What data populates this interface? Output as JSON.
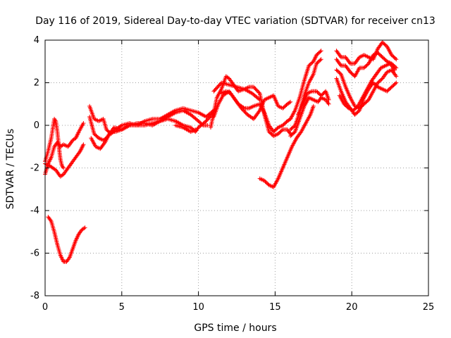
{
  "chart_data": {
    "type": "scatter",
    "title": "Day 116 of 2019, Sidereal Day-to-day VTEC variation (SDTVAR) for receiver cn13",
    "xlabel": "GPS time / hours",
    "ylabel": "SDTVAR / TECUs",
    "xlim": [
      0,
      25
    ],
    "ylim": [
      -8,
      4
    ],
    "xticks": [
      "0",
      "5",
      "10",
      "15",
      "20",
      "25"
    ],
    "yticks": [
      "-8",
      "-6",
      "-4",
      "-2",
      "0",
      "2",
      "4"
    ],
    "grid": true,
    "marker": "plus",
    "color": "#ff0000",
    "series": [
      {
        "values": [
          [
            0.0,
            -2.3
          ],
          [
            0.2,
            -1.8
          ],
          [
            0.4,
            -1.5
          ],
          [
            0.6,
            -1.0
          ],
          [
            0.8,
            -0.8
          ],
          [
            1.0,
            -1.0
          ],
          [
            1.2,
            -0.9
          ],
          [
            1.5,
            -1.0
          ],
          [
            1.8,
            -0.7
          ],
          [
            2.0,
            -0.6
          ],
          [
            2.2,
            -0.3
          ],
          [
            2.5,
            0.1
          ]
        ]
      },
      {
        "values": [
          [
            0.0,
            -1.7
          ],
          [
            0.2,
            -1.2
          ],
          [
            0.4,
            -0.6
          ],
          [
            0.6,
            0.3
          ],
          [
            0.7,
            0.2
          ],
          [
            0.8,
            -0.3
          ],
          [
            0.9,
            -1.0
          ],
          [
            1.0,
            -1.6
          ],
          [
            1.1,
            -1.9
          ],
          [
            1.2,
            -2.0
          ]
        ]
      },
      {
        "values": [
          [
            0.0,
            -1.8
          ],
          [
            0.3,
            -1.9
          ],
          [
            0.5,
            -2.0
          ],
          [
            0.7,
            -2.1
          ],
          [
            0.9,
            -2.3
          ],
          [
            1.0,
            -2.4
          ],
          [
            1.2,
            -2.3
          ],
          [
            1.5,
            -2.0
          ],
          [
            1.8,
            -1.7
          ],
          [
            2.0,
            -1.5
          ],
          [
            2.3,
            -1.2
          ],
          [
            2.5,
            -0.9
          ]
        ]
      },
      {
        "values": [
          [
            0.2,
            -4.3
          ],
          [
            0.4,
            -4.5
          ],
          [
            0.6,
            -5.0
          ],
          [
            0.8,
            -5.6
          ],
          [
            1.0,
            -6.1
          ],
          [
            1.2,
            -6.4
          ],
          [
            1.4,
            -6.4
          ],
          [
            1.6,
            -6.2
          ],
          [
            1.8,
            -5.8
          ],
          [
            2.0,
            -5.4
          ],
          [
            2.2,
            -5.1
          ],
          [
            2.4,
            -4.9
          ],
          [
            2.6,
            -4.8
          ]
        ]
      },
      {
        "values": [
          [
            2.9,
            0.9
          ],
          [
            3.2,
            0.3
          ],
          [
            3.5,
            0.2
          ],
          [
            3.8,
            0.3
          ],
          [
            4.0,
            -0.2
          ],
          [
            4.3,
            -0.4
          ],
          [
            4.6,
            -0.2
          ],
          [
            5.0,
            0.0
          ],
          [
            5.5,
            0.1
          ],
          [
            6.0,
            0.0
          ],
          [
            6.5,
            0.2
          ],
          [
            7.0,
            0.3
          ],
          [
            7.5,
            0.3
          ],
          [
            8.0,
            0.5
          ],
          [
            8.5,
            0.7
          ],
          [
            9.0,
            0.8
          ],
          [
            9.5,
            0.7
          ],
          [
            10.0,
            0.6
          ],
          [
            10.5,
            0.4
          ],
          [
            11.0,
            0.7
          ]
        ]
      },
      {
        "values": [
          [
            2.9,
            0.4
          ],
          [
            3.2,
            -0.4
          ],
          [
            3.5,
            -0.6
          ],
          [
            3.8,
            -0.7
          ],
          [
            4.0,
            -0.6
          ],
          [
            4.3,
            -0.3
          ],
          [
            4.6,
            -0.3
          ],
          [
            5.0,
            -0.2
          ],
          [
            5.5,
            0.0
          ],
          [
            6.0,
            0.0
          ],
          [
            6.5,
            0.0
          ],
          [
            7.0,
            0.1
          ],
          [
            7.5,
            0.2
          ],
          [
            8.0,
            0.4
          ],
          [
            8.5,
            0.6
          ],
          [
            9.0,
            0.7
          ],
          [
            9.5,
            0.5
          ],
          [
            10.0,
            0.2
          ],
          [
            10.3,
            0.0
          ],
          [
            10.6,
            0.0
          ]
        ]
      },
      {
        "values": [
          [
            3.0,
            -0.6
          ],
          [
            3.3,
            -1.0
          ],
          [
            3.6,
            -1.1
          ],
          [
            3.9,
            -0.8
          ],
          [
            4.2,
            -0.4
          ],
          [
            4.5,
            -0.1
          ],
          [
            5.0,
            -0.2
          ],
          [
            5.5,
            0.0
          ],
          [
            6.0,
            0.1
          ],
          [
            6.5,
            0.1
          ],
          [
            7.0,
            0.0
          ],
          [
            7.5,
            0.2
          ],
          [
            8.0,
            0.3
          ],
          [
            8.5,
            0.2
          ],
          [
            9.0,
            0.0
          ],
          [
            9.5,
            -0.1
          ],
          [
            9.8,
            -0.3
          ],
          [
            10.0,
            -0.1
          ],
          [
            10.5,
            0.2
          ],
          [
            11.0,
            0.6
          ]
        ]
      },
      {
        "values": [
          [
            8.5,
            0.0
          ],
          [
            9.0,
            -0.1
          ],
          [
            9.5,
            -0.3
          ],
          [
            9.8,
            -0.2
          ]
        ]
      },
      {
        "values": [
          [
            10.8,
            -0.1
          ],
          [
            11.0,
            0.6
          ],
          [
            11.2,
            1.3
          ],
          [
            11.5,
            1.7
          ],
          [
            11.8,
            2.3
          ],
          [
            12.0,
            2.2
          ],
          [
            12.3,
            1.9
          ],
          [
            12.6,
            1.6
          ],
          [
            13.0,
            1.7
          ],
          [
            13.3,
            1.8
          ],
          [
            13.6,
            1.8
          ],
          [
            14.0,
            1.5
          ],
          [
            14.3,
            0.5
          ],
          [
            14.6,
            -0.3
          ],
          [
            14.9,
            -0.5
          ],
          [
            15.2,
            -0.4
          ],
          [
            15.5,
            -0.2
          ],
          [
            15.8,
            -0.2
          ],
          [
            16.0,
            -0.4
          ]
        ]
      },
      {
        "values": [
          [
            11.0,
            0.4
          ],
          [
            11.3,
            1.0
          ],
          [
            11.6,
            1.4
          ],
          [
            12.0,
            1.6
          ],
          [
            12.3,
            1.3
          ],
          [
            12.6,
            1.0
          ],
          [
            13.0,
            0.8
          ],
          [
            13.3,
            0.8
          ],
          [
            13.6,
            0.9
          ],
          [
            14.0,
            1.0
          ],
          [
            14.3,
            0.6
          ],
          [
            14.6,
            0.0
          ],
          [
            14.9,
            -0.3
          ],
          [
            15.2,
            -0.1
          ],
          [
            15.5,
            0.0
          ],
          [
            15.8,
            0.2
          ],
          [
            16.0,
            0.3
          ]
        ]
      },
      {
        "values": [
          [
            11.5,
            1.5
          ],
          [
            11.8,
            1.6
          ],
          [
            12.1,
            1.5
          ],
          [
            12.4,
            1.2
          ],
          [
            12.8,
            0.8
          ],
          [
            13.2,
            0.5
          ],
          [
            13.6,
            0.3
          ],
          [
            14.0,
            0.7
          ],
          [
            14.3,
            1.2
          ],
          [
            14.6,
            1.3
          ],
          [
            14.9,
            1.4
          ],
          [
            15.2,
            0.9
          ],
          [
            15.5,
            0.8
          ],
          [
            15.8,
            1.0
          ],
          [
            16.0,
            1.1
          ]
        ]
      },
      {
        "values": [
          [
            11.0,
            1.6
          ],
          [
            11.5,
            2.0
          ],
          [
            12.0,
            1.9
          ],
          [
            12.5,
            1.8
          ],
          [
            13.0,
            1.7
          ],
          [
            13.5,
            1.5
          ],
          [
            14.0,
            1.2
          ]
        ]
      },
      {
        "values": [
          [
            14.0,
            -2.5
          ],
          [
            14.3,
            -2.6
          ],
          [
            14.6,
            -2.8
          ],
          [
            14.9,
            -2.9
          ],
          [
            15.2,
            -2.5
          ],
          [
            15.5,
            -2.0
          ],
          [
            15.8,
            -1.5
          ],
          [
            16.1,
            -1.0
          ],
          [
            16.4,
            -0.6
          ],
          [
            16.7,
            -0.3
          ],
          [
            17.0,
            0.1
          ],
          [
            17.3,
            0.5
          ],
          [
            17.5,
            0.9
          ]
        ]
      },
      {
        "values": [
          [
            16.0,
            0.3
          ],
          [
            16.3,
            0.7
          ],
          [
            16.6,
            1.3
          ],
          [
            16.9,
            2.1
          ],
          [
            17.2,
            2.8
          ],
          [
            17.5,
            3.0
          ],
          [
            17.7,
            3.3
          ],
          [
            18.0,
            3.5
          ]
        ]
      },
      {
        "values": [
          [
            16.0,
            -0.2
          ],
          [
            16.3,
            0.0
          ],
          [
            16.6,
            0.6
          ],
          [
            16.9,
            1.4
          ],
          [
            17.2,
            2.0
          ],
          [
            17.5,
            2.4
          ],
          [
            17.7,
            2.9
          ],
          [
            18.0,
            3.1
          ]
        ]
      },
      {
        "values": [
          [
            16.5,
            0.5
          ],
          [
            16.8,
            1.0
          ],
          [
            17.1,
            1.5
          ],
          [
            17.4,
            1.6
          ],
          [
            17.7,
            1.6
          ],
          [
            18.0,
            1.4
          ],
          [
            18.3,
            1.6
          ],
          [
            18.5,
            1.2
          ]
        ]
      },
      {
        "values": [
          [
            16.0,
            -0.5
          ],
          [
            16.3,
            -0.3
          ],
          [
            16.6,
            0.3
          ],
          [
            16.9,
            0.9
          ],
          [
            17.2,
            1.3
          ],
          [
            17.5,
            1.2
          ],
          [
            17.8,
            1.1
          ],
          [
            18.0,
            1.3
          ],
          [
            18.3,
            1.2
          ],
          [
            18.5,
            1.0
          ]
        ]
      },
      {
        "values": [
          [
            19.0,
            3.5
          ],
          [
            19.3,
            3.2
          ],
          [
            19.6,
            3.2
          ],
          [
            19.9,
            2.9
          ],
          [
            20.2,
            2.9
          ],
          [
            20.5,
            3.2
          ],
          [
            20.8,
            3.3
          ],
          [
            21.1,
            3.2
          ],
          [
            21.4,
            3.1
          ],
          [
            21.7,
            3.6
          ],
          [
            22.0,
            3.9
          ],
          [
            22.3,
            3.7
          ],
          [
            22.6,
            3.3
          ],
          [
            22.9,
            3.1
          ]
        ]
      },
      {
        "values": [
          [
            19.0,
            3.1
          ],
          [
            19.3,
            2.8
          ],
          [
            19.6,
            2.8
          ],
          [
            19.9,
            2.5
          ],
          [
            20.2,
            2.3
          ],
          [
            20.5,
            2.7
          ],
          [
            20.8,
            2.7
          ],
          [
            21.1,
            2.9
          ],
          [
            21.4,
            3.3
          ],
          [
            21.7,
            3.4
          ],
          [
            22.0,
            3.2
          ],
          [
            22.3,
            3.0
          ],
          [
            22.6,
            2.9
          ],
          [
            22.9,
            2.7
          ]
        ]
      },
      {
        "values": [
          [
            19.0,
            2.6
          ],
          [
            19.3,
            2.4
          ],
          [
            19.6,
            1.8
          ],
          [
            19.9,
            1.3
          ],
          [
            20.2,
            0.9
          ],
          [
            20.5,
            0.8
          ],
          [
            20.8,
            1.0
          ],
          [
            21.1,
            1.2
          ],
          [
            21.4,
            1.6
          ],
          [
            21.7,
            2.0
          ],
          [
            22.0,
            2.2
          ],
          [
            22.3,
            2.5
          ],
          [
            22.6,
            2.6
          ],
          [
            22.9,
            2.3
          ]
        ]
      },
      {
        "values": [
          [
            19.2,
            1.4
          ],
          [
            19.5,
            1.0
          ],
          [
            19.8,
            0.8
          ],
          [
            20.1,
            0.7
          ],
          [
            20.4,
            0.9
          ],
          [
            20.7,
            1.3
          ],
          [
            21.0,
            1.7
          ],
          [
            21.3,
            2.1
          ],
          [
            21.6,
            2.4
          ],
          [
            21.9,
            2.7
          ],
          [
            22.2,
            2.8
          ],
          [
            22.5,
            2.9
          ],
          [
            22.8,
            2.6
          ]
        ]
      },
      {
        "values": [
          [
            19.0,
            2.2
          ],
          [
            19.3,
            1.6
          ],
          [
            19.6,
            1.1
          ],
          [
            19.9,
            0.8
          ],
          [
            20.2,
            0.5
          ],
          [
            20.5,
            0.7
          ],
          [
            20.8,
            1.3
          ],
          [
            21.1,
            1.7
          ],
          [
            21.4,
            2.0
          ],
          [
            21.7,
            1.8
          ],
          [
            22.0,
            1.7
          ],
          [
            22.3,
            1.6
          ],
          [
            22.6,
            1.8
          ],
          [
            22.9,
            2.0
          ]
        ]
      }
    ]
  }
}
